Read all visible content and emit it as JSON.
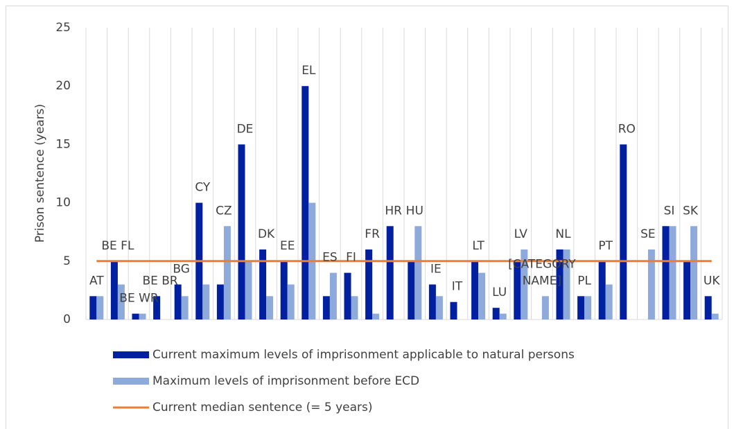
{
  "chart_data": {
    "type": "bar",
    "y_label": "Prison sentence (years)",
    "categories": [
      "AT",
      "BE FL",
      "BE WR",
      "BE BR",
      "BG",
      "CY",
      "CZ",
      "DE",
      "DK",
      "EE",
      "EL",
      "ES",
      "FI",
      "FR",
      "HR",
      "HU",
      "IE",
      "IT",
      "LT",
      "LU",
      "LV",
      "[CATEGORY NAME]",
      "NL",
      "PL",
      "PT",
      "RO",
      "SE",
      "SI",
      "SK",
      "UK"
    ],
    "series": [
      {
        "name": "Current maximum levels of imprisonment applicable to natural persons",
        "color": "#00209f",
        "values": [
          2,
          5,
          0.5,
          2,
          3,
          10,
          3,
          15,
          6,
          5,
          20,
          2,
          4,
          6,
          8,
          5,
          3,
          1.5,
          5,
          1,
          5,
          0,
          6,
          2,
          5,
          15,
          0,
          8,
          5,
          2
        ]
      },
      {
        "name": "Maximum levels of imprisonment before ECD",
        "color": "#8eaadb",
        "values": [
          2,
          3,
          0.5,
          0,
          2,
          3,
          8,
          5,
          2,
          3,
          10,
          4,
          2,
          0.5,
          0,
          8,
          2,
          0,
          4,
          0.5,
          6,
          2,
          6,
          2,
          3,
          0,
          6,
          8,
          8,
          0.5
        ]
      },
      {
        "name": "Current median sentence (= 5 years)",
        "color": "#ed7d31",
        "kind": "line",
        "values": [
          5,
          5,
          5,
          5,
          5,
          5,
          5,
          5,
          5,
          5,
          5,
          5,
          5,
          5,
          5,
          5,
          5,
          5,
          5,
          5,
          5,
          5,
          5,
          5,
          5,
          5,
          5,
          5,
          5,
          5
        ]
      }
    ],
    "ylim": [
      0,
      25
    ],
    "yticks": [
      0,
      5,
      10,
      15,
      20,
      25
    ],
    "grid": true
  }
}
